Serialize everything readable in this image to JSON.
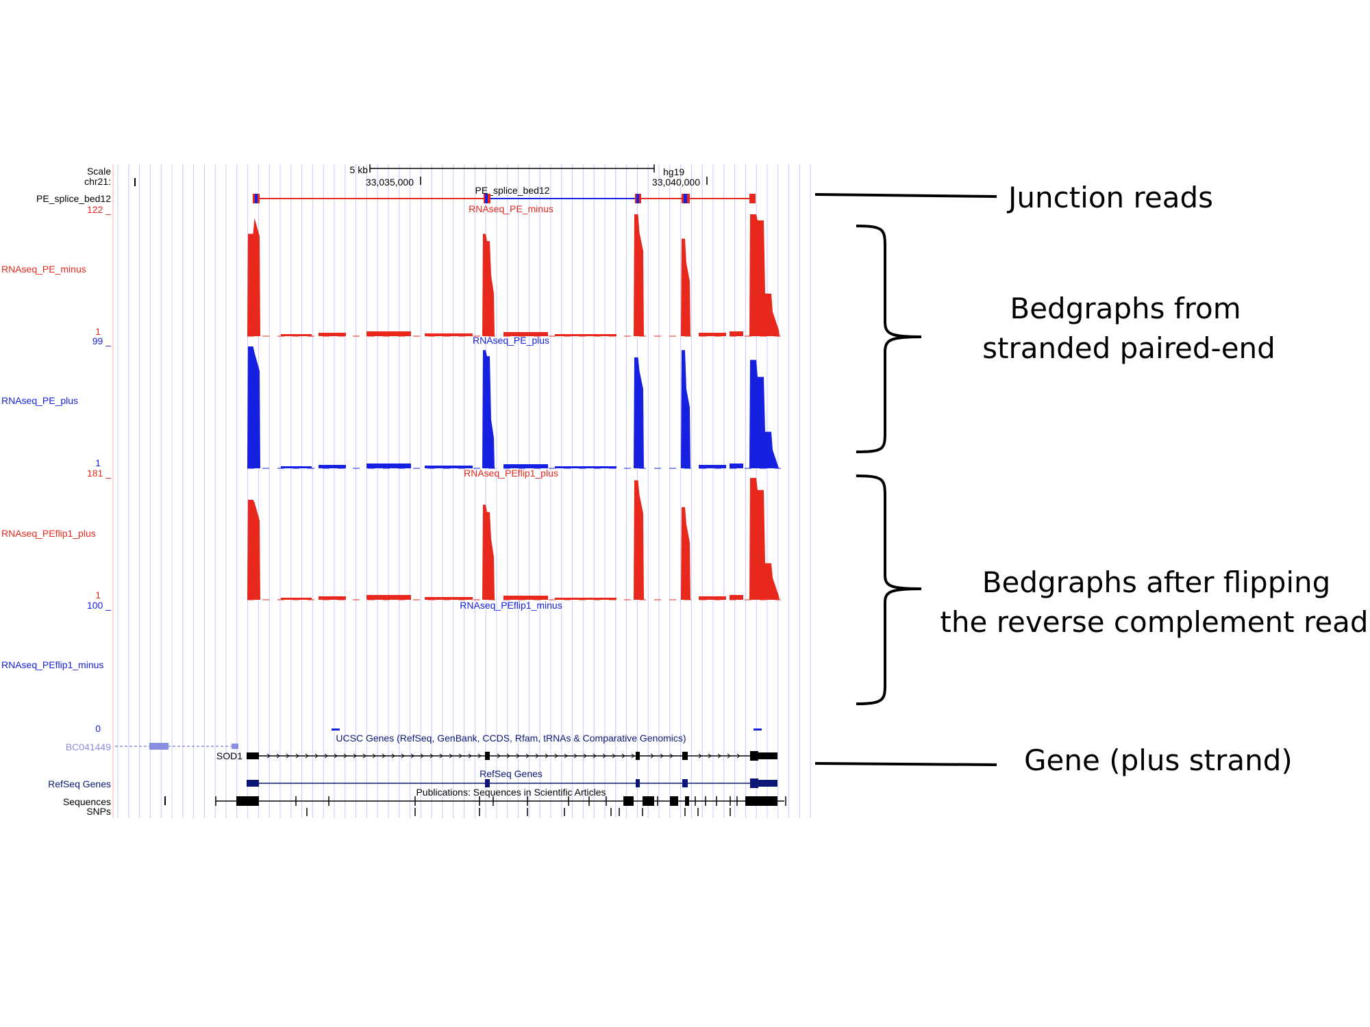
{
  "header": {
    "scale_label": "Scale",
    "chrom_label": "chr21:",
    "scale_bar_text": "5 kb",
    "assembly": "hg19",
    "position_ticks": [
      "33,035,000",
      "33,040,000"
    ]
  },
  "tracks": {
    "junction": {
      "side_label": "PE_splice_bed12",
      "center_label": "PE_splice_bed12"
    },
    "pe_minus": {
      "side_label": "RNAseq_PE_minus",
      "center_label": "RNAseq_PE_minus",
      "max_label": "122 _",
      "min_label": "1",
      "color": "#e8281c"
    },
    "pe_plus": {
      "side_label": "RNAseq_PE_plus",
      "center_label": "RNAseq_PE_plus",
      "max_label": "99 _",
      "min_label": "1",
      "color": "#1620e0"
    },
    "flip_plus": {
      "side_label": "RNAseq_PEflip1_plus",
      "center_label": "RNAseq_PEflip1_plus",
      "max_label": "181 _",
      "min_label": "1",
      "color": "#e8281c"
    },
    "flip_minus": {
      "side_label": "RNAseq_PEflip1_minus",
      "center_label": "RNAseq_PEflip1_minus",
      "max_label": "100 _",
      "min_label": "0",
      "color": "#1620e0"
    },
    "ucsc_genes": {
      "title": "UCSC Genes (RefSeq, GenBank, CCDS, Rfam, tRNAs & Comparative Genomics)",
      "gene1": "BC041449",
      "gene2": "SOD1"
    },
    "refseq": {
      "side_label": "RefSeq Genes",
      "center_label": "RefSeq Genes"
    },
    "sequences": {
      "side_label": "Sequences",
      "center_label": "Publications: Sequences in Scientific Articles"
    },
    "snps": {
      "side_label": "SNPs"
    }
  },
  "annotations": {
    "junction_reads": "Junction reads",
    "stranded_line1": "Bedgraphs from",
    "stranded_line2": "stranded paired-end",
    "flipped_line1": "Bedgraphs after flipping",
    "flipped_line2": "the reverse complement read",
    "gene_plus": "Gene (plus strand)"
  },
  "colors": {
    "red": "#e8281c",
    "blue": "#1620e0",
    "navy": "#0b1677",
    "grid": "#c8c8f5",
    "light_gene": "#8a8ee0"
  },
  "coverage": {
    "peaks": {
      "pe_minus": [
        [
          0.84,
          0.97
        ],
        [
          0.84,
          0.78,
          0.5
        ],
        [
          1.0,
          0.85
        ],
        [
          0.8,
          0.6
        ],
        [
          1.0,
          0.95,
          0.35,
          0.2
        ]
      ],
      "pe_plus": [
        [
          1.0,
          0.95
        ],
        [
          0.97,
          0.92,
          0.4
        ],
        [
          0.91,
          0.8
        ],
        [
          0.97,
          0.65
        ],
        [
          0.89,
          0.75,
          0.3,
          0.15
        ]
      ],
      "flip_plus": [
        [
          0.82,
          0.8
        ],
        [
          0.78,
          0.72,
          0.5
        ],
        [
          0.98,
          0.86
        ],
        [
          0.76,
          0.62
        ],
        [
          1.0,
          0.9,
          0.3,
          0.18
        ]
      ]
    }
  }
}
